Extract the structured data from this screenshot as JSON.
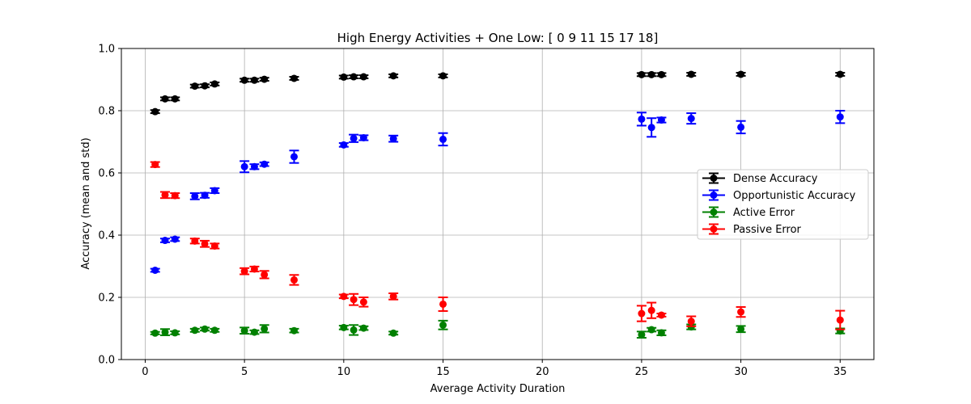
{
  "chart_data": {
    "type": "scatter",
    "title": "High Energy Activities + One Low: [ 0  9 11 15 17 18]",
    "xlabel": "Average Activity Duration",
    "ylabel": "Accuracy (mean and std)",
    "xlim": [
      -1.2,
      36.7
    ],
    "ylim": [
      0.0,
      1.0
    ],
    "xticks": [
      0,
      5,
      10,
      15,
      20,
      25,
      30,
      35
    ],
    "yticks": [
      0.0,
      0.2,
      0.4,
      0.6,
      0.8,
      1.0
    ],
    "xtick_labels": [
      "0",
      "5",
      "10",
      "15",
      "20",
      "25",
      "30",
      "35"
    ],
    "ytick_labels": [
      "0.0",
      "0.2",
      "0.4",
      "0.6",
      "0.8",
      "1.0"
    ],
    "grid": true,
    "legend_position": "center-right",
    "error_bars": "std",
    "series": [
      {
        "name": "Dense Accuracy",
        "color": "#000000",
        "points": [
          {
            "x": 0.5,
            "y": 0.797,
            "err": 0.005
          },
          {
            "x": 1.0,
            "y": 0.838,
            "err": 0.005
          },
          {
            "x": 1.5,
            "y": 0.838,
            "err": 0.005
          },
          {
            "x": 2.5,
            "y": 0.879,
            "err": 0.005
          },
          {
            "x": 3.0,
            "y": 0.88,
            "err": 0.005
          },
          {
            "x": 3.5,
            "y": 0.886,
            "err": 0.005
          },
          {
            "x": 5.0,
            "y": 0.898,
            "err": 0.005
          },
          {
            "x": 5.5,
            "y": 0.898,
            "err": 0.005
          },
          {
            "x": 6.0,
            "y": 0.901,
            "err": 0.005
          },
          {
            "x": 7.5,
            "y": 0.904,
            "err": 0.005
          },
          {
            "x": 10.0,
            "y": 0.908,
            "err": 0.005
          },
          {
            "x": 10.5,
            "y": 0.909,
            "err": 0.005
          },
          {
            "x": 11.0,
            "y": 0.909,
            "err": 0.005
          },
          {
            "x": 12.5,
            "y": 0.912,
            "err": 0.005
          },
          {
            "x": 15.0,
            "y": 0.912,
            "err": 0.005
          },
          {
            "x": 25.0,
            "y": 0.916,
            "err": 0.005
          },
          {
            "x": 25.5,
            "y": 0.916,
            "err": 0.005
          },
          {
            "x": 26.0,
            "y": 0.916,
            "err": 0.005
          },
          {
            "x": 27.5,
            "y": 0.917,
            "err": 0.005
          },
          {
            "x": 30.0,
            "y": 0.917,
            "err": 0.005
          },
          {
            "x": 35.0,
            "y": 0.917,
            "err": 0.005
          }
        ]
      },
      {
        "name": "Opportunistic Accuracy",
        "color": "#0000ff",
        "points": [
          {
            "x": 0.5,
            "y": 0.287,
            "err": 0.005
          },
          {
            "x": 1.0,
            "y": 0.383,
            "err": 0.006
          },
          {
            "x": 1.5,
            "y": 0.387,
            "err": 0.006
          },
          {
            "x": 2.5,
            "y": 0.525,
            "err": 0.01
          },
          {
            "x": 3.0,
            "y": 0.528,
            "err": 0.008
          },
          {
            "x": 3.5,
            "y": 0.543,
            "err": 0.008
          },
          {
            "x": 5.0,
            "y": 0.62,
            "err": 0.018
          },
          {
            "x": 5.5,
            "y": 0.62,
            "err": 0.008
          },
          {
            "x": 6.0,
            "y": 0.628,
            "err": 0.006
          },
          {
            "x": 7.5,
            "y": 0.652,
            "err": 0.02
          },
          {
            "x": 10.0,
            "y": 0.69,
            "err": 0.006
          },
          {
            "x": 10.5,
            "y": 0.711,
            "err": 0.012
          },
          {
            "x": 11.0,
            "y": 0.713,
            "err": 0.008
          },
          {
            "x": 12.5,
            "y": 0.71,
            "err": 0.01
          },
          {
            "x": 15.0,
            "y": 0.708,
            "err": 0.02
          },
          {
            "x": 25.0,
            "y": 0.773,
            "err": 0.021
          },
          {
            "x": 25.5,
            "y": 0.746,
            "err": 0.03
          },
          {
            "x": 26.0,
            "y": 0.77,
            "err": 0.008
          },
          {
            "x": 27.5,
            "y": 0.775,
            "err": 0.017
          },
          {
            "x": 30.0,
            "y": 0.747,
            "err": 0.02
          },
          {
            "x": 35.0,
            "y": 0.78,
            "err": 0.02
          }
        ]
      },
      {
        "name": "Active Error",
        "color": "#008000",
        "points": [
          {
            "x": 0.5,
            "y": 0.085,
            "err": 0.004
          },
          {
            "x": 1.0,
            "y": 0.088,
            "err": 0.01
          },
          {
            "x": 1.5,
            "y": 0.086,
            "err": 0.005
          },
          {
            "x": 2.5,
            "y": 0.094,
            "err": 0.005
          },
          {
            "x": 3.0,
            "y": 0.098,
            "err": 0.005
          },
          {
            "x": 3.5,
            "y": 0.094,
            "err": 0.005
          },
          {
            "x": 5.0,
            "y": 0.093,
            "err": 0.01
          },
          {
            "x": 5.5,
            "y": 0.088,
            "err": 0.006
          },
          {
            "x": 6.0,
            "y": 0.099,
            "err": 0.012
          },
          {
            "x": 7.5,
            "y": 0.093,
            "err": 0.006
          },
          {
            "x": 10.0,
            "y": 0.103,
            "err": 0.006
          },
          {
            "x": 10.5,
            "y": 0.095,
            "err": 0.016
          },
          {
            "x": 11.0,
            "y": 0.101,
            "err": 0.006
          },
          {
            "x": 12.5,
            "y": 0.085,
            "err": 0.005
          },
          {
            "x": 15.0,
            "y": 0.111,
            "err": 0.014
          },
          {
            "x": 25.0,
            "y": 0.08,
            "err": 0.01
          },
          {
            "x": 25.5,
            "y": 0.096,
            "err": 0.006
          },
          {
            "x": 26.0,
            "y": 0.086,
            "err": 0.008
          },
          {
            "x": 27.5,
            "y": 0.105,
            "err": 0.008
          },
          {
            "x": 30.0,
            "y": 0.098,
            "err": 0.01
          },
          {
            "x": 35.0,
            "y": 0.092,
            "err": 0.008
          }
        ]
      },
      {
        "name": "Passive Error",
        "color": "#ff0000",
        "points": [
          {
            "x": 0.5,
            "y": 0.627,
            "err": 0.008
          },
          {
            "x": 1.0,
            "y": 0.529,
            "err": 0.01
          },
          {
            "x": 1.5,
            "y": 0.527,
            "err": 0.008
          },
          {
            "x": 2.5,
            "y": 0.381,
            "err": 0.008
          },
          {
            "x": 3.0,
            "y": 0.372,
            "err": 0.01
          },
          {
            "x": 3.5,
            "y": 0.365,
            "err": 0.008
          },
          {
            "x": 5.0,
            "y": 0.284,
            "err": 0.01
          },
          {
            "x": 5.5,
            "y": 0.291,
            "err": 0.008
          },
          {
            "x": 6.0,
            "y": 0.273,
            "err": 0.012
          },
          {
            "x": 7.5,
            "y": 0.256,
            "err": 0.016
          },
          {
            "x": 10.0,
            "y": 0.203,
            "err": 0.006
          },
          {
            "x": 10.5,
            "y": 0.193,
            "err": 0.018
          },
          {
            "x": 11.0,
            "y": 0.185,
            "err": 0.015
          },
          {
            "x": 12.5,
            "y": 0.203,
            "err": 0.01
          },
          {
            "x": 15.0,
            "y": 0.178,
            "err": 0.022
          },
          {
            "x": 25.0,
            "y": 0.148,
            "err": 0.025
          },
          {
            "x": 25.5,
            "y": 0.158,
            "err": 0.025
          },
          {
            "x": 26.0,
            "y": 0.143,
            "err": 0.005
          },
          {
            "x": 27.5,
            "y": 0.123,
            "err": 0.016
          },
          {
            "x": 30.0,
            "y": 0.153,
            "err": 0.016
          },
          {
            "x": 35.0,
            "y": 0.127,
            "err": 0.03
          }
        ]
      }
    ]
  }
}
